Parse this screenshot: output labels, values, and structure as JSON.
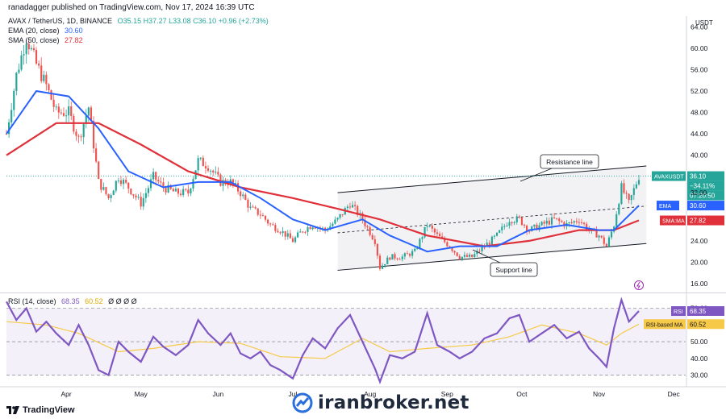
{
  "header": {
    "published": "ranadagger published on TradingView.com, Nov 17, 2024 16:39 UTC"
  },
  "legend": {
    "symbol": "AVAX / TetherUS, 1D, BINANCE",
    "ohlc": "O35.15 H37.27 L33.08 C36.10 +0.96 (+2.73%)",
    "ema_label": "EMA (20, close)",
    "ema_value": "30.60",
    "sma_label": "SMA (50, close)",
    "sma_value": "27.82",
    "rsi_label": "RSI (14, close)",
    "rsi_value": "68.35",
    "rsi_ma_value": "60.52",
    "rsi_extra": "Ø Ø Ø Ø"
  },
  "price_axis": {
    "currency": "USDT"
  },
  "watermark": {
    "text": "iranbroker.net",
    "icon": "iranbroker-logo-icon"
  },
  "footer": {
    "brand": "TradingView",
    "icon": "tradingview-logo-icon"
  },
  "annotations": {
    "resistance": "Resistance line",
    "support": "Support line"
  },
  "price_labels": {
    "symbol": "AVAXUSDT",
    "last": "36.10",
    "change": "−34.11%",
    "countdown": "07:20:50",
    "ema_tag": "EMA",
    "ema_value": "30.60",
    "sma_tag": "SMA:MA",
    "sma_value": "27.82",
    "other": "32.00"
  },
  "rsi_labels": {
    "rsi_tag": "RSI",
    "rsi_value": "68.35",
    "ma_tag": "RSI-based MA",
    "ma_value": "60.52"
  },
  "colors": {
    "up": "#26a69a",
    "down": "#ef5350",
    "ema": "#2962ff",
    "sma": "#e0303a",
    "rsi": "#7e57c2",
    "rsi_ma": "#f7c948",
    "channel": "#131722"
  },
  "chart_data": [
    {
      "type": "candlestick",
      "title": "AVAX / TetherUS, 1D, BINANCE",
      "x_ticks": [
        "Apr",
        "May",
        "Jun",
        "Jul",
        "Aug",
        "Sep",
        "Oct",
        "Nov",
        "Dec"
      ],
      "y_ticks": [
        16,
        20,
        24,
        28,
        32,
        36,
        40,
        44,
        48,
        52,
        56,
        60,
        64
      ],
      "y_tick_labels": [
        "16.00",
        "20.00",
        "24.00",
        "",
        "",
        "",
        "40.00",
        "44.00",
        "48.00",
        "52.00",
        "56.00",
        "60.00",
        "64.00"
      ],
      "ylim": [
        14.5,
        66
      ],
      "y_axis_label": "USDT",
      "ohlc_last": {
        "open": 35.15,
        "high": 37.27,
        "low": 33.08,
        "close": 36.1,
        "change": 0.96,
        "change_pct": 2.73
      },
      "close_path": [
        [
          "Mar 08",
          44
        ],
        [
          "Mar 12",
          55
        ],
        [
          "Mar 16",
          62
        ],
        [
          "Mar 20",
          57
        ],
        [
          "Mar 24",
          53
        ],
        [
          "Mar 28",
          48
        ],
        [
          "Apr 02",
          48
        ],
        [
          "Apr 06",
          43
        ],
        [
          "Apr 10",
          49
        ],
        [
          "Apr 14",
          35
        ],
        [
          "Apr 18",
          32
        ],
        [
          "Apr 22",
          36
        ],
        [
          "Apr 26",
          34
        ],
        [
          "May 01",
          31
        ],
        [
          "May 06",
          36
        ],
        [
          "May 10",
          34
        ],
        [
          "May 15",
          33
        ],
        [
          "May 20",
          33
        ],
        [
          "May 24",
          39
        ],
        [
          "May 28",
          38
        ],
        [
          "Jun 02",
          35
        ],
        [
          "Jun 06",
          35
        ],
        [
          "Jun 10",
          33
        ],
        [
          "Jun 14",
          30
        ],
        [
          "Jun 18",
          29
        ],
        [
          "Jun 22",
          27
        ],
        [
          "Jun 26",
          26
        ],
        [
          "Jul 01",
          24
        ],
        [
          "Jul 05",
          26
        ],
        [
          "Jul 09",
          27
        ],
        [
          "Jul 14",
          26
        ],
        [
          "Jul 19",
          28
        ],
        [
          "Jul 24",
          31
        ],
        [
          "Jul 29",
          28
        ],
        [
          "Aug 03",
          24
        ],
        [
          "Aug 05",
          19
        ],
        [
          "Aug 09",
          21
        ],
        [
          "Aug 14",
          21
        ],
        [
          "Aug 19",
          22
        ],
        [
          "Aug 24",
          27
        ],
        [
          "Aug 28",
          25
        ],
        [
          "Sep 02",
          23
        ],
        [
          "Sep 06",
          21
        ],
        [
          "Sep 11",
          21
        ],
        [
          "Sep 16",
          23
        ],
        [
          "Sep 21",
          25
        ],
        [
          "Sep 26",
          28
        ],
        [
          "Sep 30",
          28
        ],
        [
          "Oct 04",
          26
        ],
        [
          "Oct 09",
          27
        ],
        [
          "Oct 14",
          28
        ],
        [
          "Oct 19",
          27
        ],
        [
          "Oct 24",
          28
        ],
        [
          "Oct 28",
          26
        ],
        [
          "Nov 01",
          25
        ],
        [
          "Nov 04",
          23
        ],
        [
          "Nov 07",
          27
        ],
        [
          "Nov 10",
          34
        ],
        [
          "Nov 13",
          31
        ],
        [
          "Nov 17",
          36.1
        ]
      ],
      "ema20_path": [
        [
          "Mar 08",
          44
        ],
        [
          "Mar 20",
          52
        ],
        [
          "Apr 02",
          51
        ],
        [
          "Apr 14",
          45
        ],
        [
          "Apr 26",
          37
        ],
        [
          "May 10",
          34
        ],
        [
          "May 24",
          35
        ],
        [
          "Jun 06",
          35
        ],
        [
          "Jun 18",
          32
        ],
        [
          "Jul 01",
          28
        ],
        [
          "Jul 14",
          26
        ],
        [
          "Jul 29",
          28
        ],
        [
          "Aug 09",
          25
        ],
        [
          "Aug 24",
          22
        ],
        [
          "Sep 06",
          23
        ],
        [
          "Sep 21",
          23
        ],
        [
          "Oct 04",
          26
        ],
        [
          "Oct 19",
          27
        ],
        [
          "Nov 01",
          26
        ],
        [
          "Nov 07",
          26
        ],
        [
          "Nov 17",
          30.6
        ]
      ],
      "sma50_path": [
        [
          "Mar 08",
          40
        ],
        [
          "Mar 28",
          46
        ],
        [
          "Apr 14",
          46
        ],
        [
          "May 01",
          42
        ],
        [
          "May 20",
          37
        ],
        [
          "Jun 10",
          34
        ],
        [
          "Jul 01",
          32
        ],
        [
          "Jul 19",
          30
        ],
        [
          "Aug 05",
          28
        ],
        [
          "Aug 24",
          25
        ],
        [
          "Sep 16",
          23
        ],
        [
          "Oct 04",
          24
        ],
        [
          "Oct 24",
          26
        ],
        [
          "Nov 07",
          26
        ],
        [
          "Nov 17",
          27.82
        ]
      ],
      "channel": {
        "resistance": [
          [
            "Jul 19",
            33
          ],
          [
            "Nov 20",
            38
          ]
        ],
        "support": [
          [
            "Jul 19",
            18.5
          ],
          [
            "Nov 20",
            23.5
          ]
        ],
        "midline": [
          [
            "Jul 19",
            25.5
          ],
          [
            "Nov 20",
            30.5
          ]
        ]
      }
    },
    {
      "type": "line",
      "title": "RSI (14, close)",
      "y_ticks": [
        30,
        40,
        50,
        60,
        70
      ],
      "y_tick_labels": [
        "30.00",
        "40.00",
        "50.00",
        "60.00",
        "70.00"
      ],
      "ylim": [
        24,
        78
      ],
      "bands": [
        30,
        70
      ],
      "series": [
        {
          "name": "RSI",
          "values_by_date": [
            [
              "Mar 08",
              74
            ],
            [
              "Mar 12",
              63
            ],
            [
              "Mar 16",
              70
            ],
            [
              "Mar 20",
              56
            ],
            [
              "Mar 24",
              62
            ],
            [
              "Mar 28",
              55
            ],
            [
              "Apr 02",
              48
            ],
            [
              "Apr 06",
              60
            ],
            [
              "Apr 10",
              48
            ],
            [
              "Apr 14",
              33
            ],
            [
              "Apr 18",
              30
            ],
            [
              "Apr 22",
              50
            ],
            [
              "Apr 26",
              44
            ],
            [
              "May 01",
              38
            ],
            [
              "May 06",
              53
            ],
            [
              "May 10",
              47
            ],
            [
              "May 15",
              42
            ],
            [
              "May 20",
              48
            ],
            [
              "May 24",
              63
            ],
            [
              "May 28",
              55
            ],
            [
              "Jun 02",
              48
            ],
            [
              "Jun 06",
              55
            ],
            [
              "Jun 10",
              43
            ],
            [
              "Jun 14",
              40
            ],
            [
              "Jun 18",
              44
            ],
            [
              "Jun 22",
              36
            ],
            [
              "Jun 26",
              33
            ],
            [
              "Jul 01",
              28
            ],
            [
              "Jul 05",
              42
            ],
            [
              "Jul 09",
              52
            ],
            [
              "Jul 14",
              46
            ],
            [
              "Jul 19",
              58
            ],
            [
              "Jul 24",
              66
            ],
            [
              "Jul 29",
              50
            ],
            [
              "Aug 03",
              34
            ],
            [
              "Aug 05",
              26
            ],
            [
              "Aug 09",
              42
            ],
            [
              "Aug 14",
              40
            ],
            [
              "Aug 19",
              44
            ],
            [
              "Aug 24",
              67
            ],
            [
              "Aug 28",
              48
            ],
            [
              "Sep 02",
              44
            ],
            [
              "Sep 06",
              40
            ],
            [
              "Sep 11",
              44
            ],
            [
              "Sep 16",
              52
            ],
            [
              "Sep 21",
              55
            ],
            [
              "Sep 26",
              64
            ],
            [
              "Sep 30",
              66
            ],
            [
              "Oct 04",
              50
            ],
            [
              "Oct 09",
              55
            ],
            [
              "Oct 14",
              60
            ],
            [
              "Oct 19",
              52
            ],
            [
              "Oct 24",
              56
            ],
            [
              "Oct 28",
              46
            ],
            [
              "Nov 01",
              40
            ],
            [
              "Nov 04",
              35
            ],
            [
              "Nov 07",
              58
            ],
            [
              "Nov 10",
              75
            ],
            [
              "Nov 13",
              62
            ],
            [
              "Nov 17",
              68.35
            ]
          ]
        },
        {
          "name": "RSI-based MA",
          "values_by_date": [
            [
              "Mar 08",
              62
            ],
            [
              "Mar 24",
              60
            ],
            [
              "Apr 06",
              55
            ],
            [
              "Apr 22",
              44
            ],
            [
              "May 06",
              46
            ],
            [
              "May 24",
              50
            ],
            [
              "Jun 10",
              49
            ],
            [
              "Jun 26",
              41
            ],
            [
              "Jul 14",
              40
            ],
            [
              "Jul 29",
              52
            ],
            [
              "Aug 09",
              44
            ],
            [
              "Aug 24",
              46
            ],
            [
              "Sep 11",
              48
            ],
            [
              "Sep 26",
              53
            ],
            [
              "Oct 09",
              60
            ],
            [
              "Oct 24",
              55
            ],
            [
              "Nov 04",
              48
            ],
            [
              "Nov 10",
              55
            ],
            [
              "Nov 17",
              60.52
            ]
          ]
        }
      ]
    }
  ]
}
